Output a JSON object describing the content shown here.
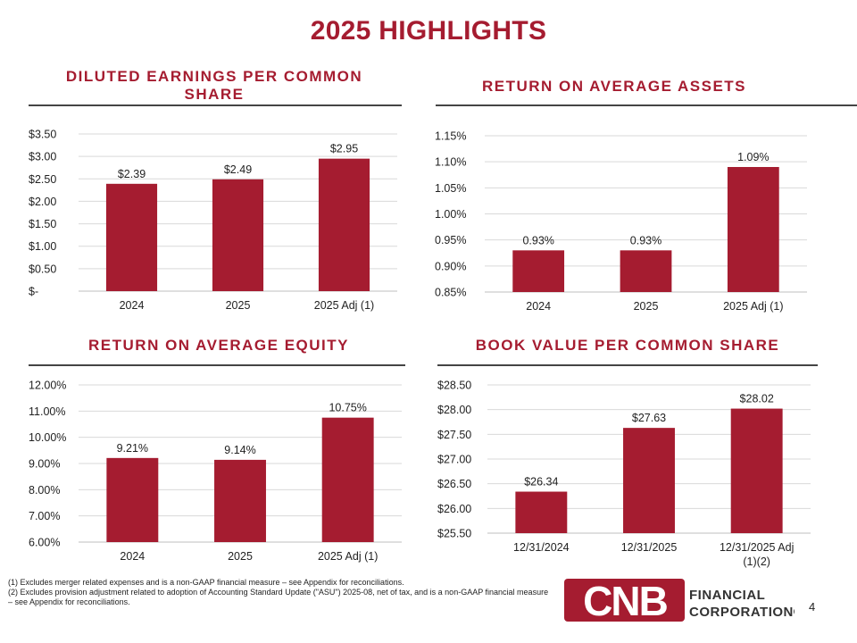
{
  "page": {
    "title": "2025 HIGHLIGHTS",
    "page_number": "4",
    "footnotes": [
      "(1) Excludes merger related expenses and is a non-GAAP financial measure – see Appendix for reconciliations.",
      "(2) Excludes provision adjustment related to adoption of Accounting Standard Update (\"ASU\") 2025-08, net of tax, and is a non-GAAP financial measure – see Appendix for reconciliations."
    ],
    "logo": {
      "letters": "CNB",
      "line1": "FINANCIAL",
      "line2": "CORPORATION®"
    },
    "colors": {
      "accent": "#a51c30",
      "bar": "#a51c30",
      "grid": "#d9d9d9"
    }
  },
  "chart_data": [
    {
      "type": "bar",
      "title": "DILUTED EARNINGS PER COMMON SHARE",
      "categories": [
        "2024",
        "2025",
        "2025 Adj (1)"
      ],
      "values": [
        2.39,
        2.49,
        2.95
      ],
      "data_labels": [
        "$2.39",
        "$2.49",
        "$2.95"
      ],
      "ylim": [
        0,
        3.5
      ],
      "yticks": [
        0,
        0.5,
        1,
        1.5,
        2,
        2.5,
        3,
        3.5
      ],
      "ytick_labels": [
        "$-",
        "$0.50",
        "$1.00",
        "$1.50",
        "$2.00",
        "$2.50",
        "$3.00",
        "$3.50"
      ],
      "grid": true
    },
    {
      "type": "bar",
      "title": "RETURN ON AVERAGE ASSETS",
      "categories": [
        "2024",
        "2025",
        "2025 Adj (1)"
      ],
      "values": [
        0.93,
        0.93,
        1.09
      ],
      "data_labels": [
        "0.93%",
        "0.93%",
        "1.09%"
      ],
      "ylim": [
        0.85,
        1.15
      ],
      "yticks": [
        0.85,
        0.9,
        0.95,
        1.0,
        1.05,
        1.1,
        1.15
      ],
      "ytick_labels": [
        "0.85%",
        "0.90%",
        "0.95%",
        "1.00%",
        "1.05%",
        "1.10%",
        "1.15%"
      ],
      "grid": true
    },
    {
      "type": "bar",
      "title": "RETURN ON AVERAGE EQUITY",
      "categories": [
        "2024",
        "2025",
        "2025 Adj (1)"
      ],
      "values": [
        9.21,
        9.14,
        10.75
      ],
      "data_labels": [
        "9.21%",
        "9.14%",
        "10.75%"
      ],
      "ylim": [
        6,
        12
      ],
      "yticks": [
        6,
        7,
        8,
        9,
        10,
        11,
        12
      ],
      "ytick_labels": [
        "6.00%",
        "7.00%",
        "8.00%",
        "9.00%",
        "10.00%",
        "11.00%",
        "12.00%"
      ],
      "grid": true
    },
    {
      "type": "bar",
      "title": "BOOK VALUE PER COMMON SHARE",
      "categories": [
        "12/31/2024",
        "12/31/2025",
        "12/31/2025 Adj (1)(2)"
      ],
      "values": [
        26.34,
        27.63,
        28.02
      ],
      "data_labels": [
        "$26.34",
        "$27.63",
        "$28.02"
      ],
      "ylim": [
        25.5,
        28.5
      ],
      "yticks": [
        25.5,
        26,
        26.5,
        27,
        27.5,
        28,
        28.5
      ],
      "ytick_labels": [
        "$25.50",
        "$26.00",
        "$26.50",
        "$27.00",
        "$27.50",
        "$28.00",
        "$28.50"
      ],
      "grid": true
    }
  ]
}
